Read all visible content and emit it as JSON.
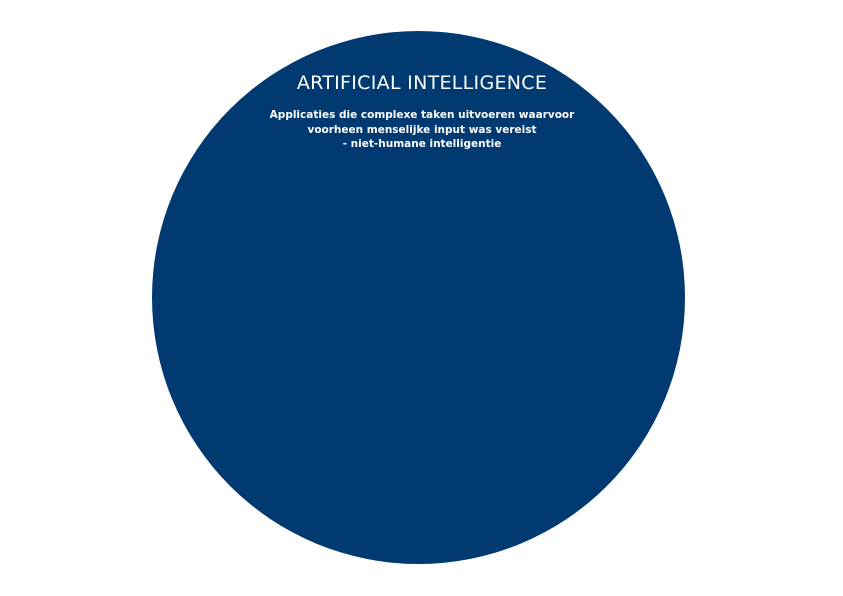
{
  "diagram": {
    "title": "ARTIFICIAL INTELLIGENCE",
    "description_lines": [
      "Applicaties die complexe taken uitvoeren waarvoor",
      "voorheen menselijke input was vereist",
      "- niet-humane intelligentie"
    ]
  },
  "colors": {
    "circle_fill": "#003a70",
    "text": "#ffffff",
    "background": "#ffffff"
  }
}
